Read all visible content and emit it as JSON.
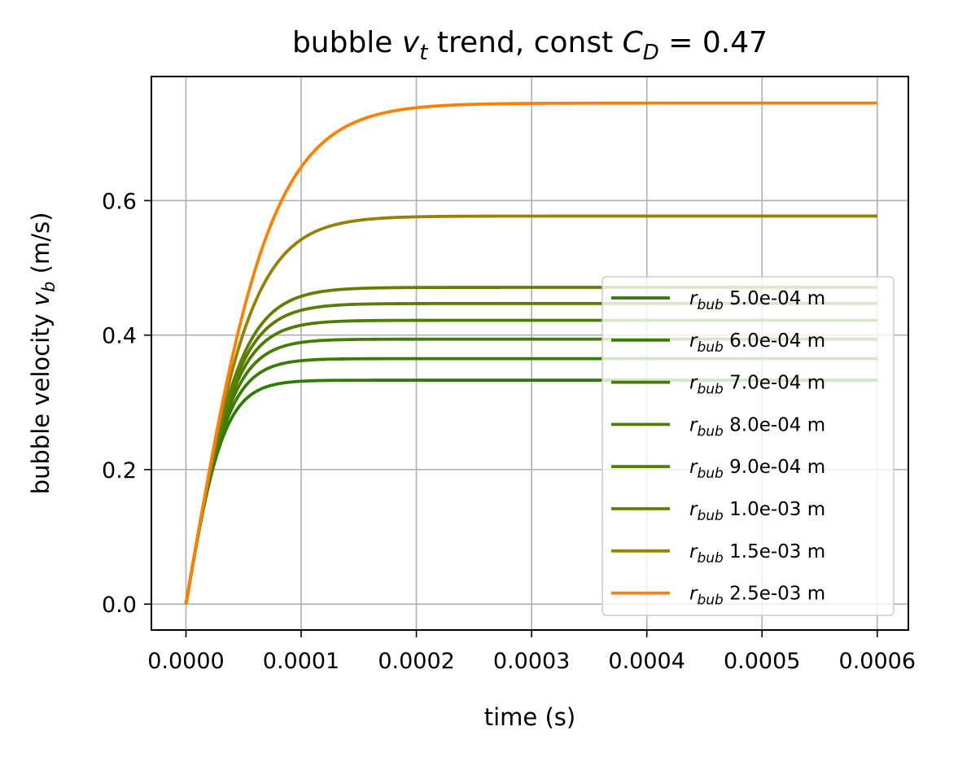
{
  "chart_data": {
    "type": "line",
    "title": {
      "prefix": "bubble ",
      "var": "v",
      "var_sub": "t",
      "middle": " trend, const ",
      "coef": "C",
      "coef_sub": "D",
      "suffix": " = 0.47"
    },
    "xlabel": "time (s)",
    "ylabel": {
      "prefix": "bubble velocity ",
      "var": "v",
      "var_sub": "b",
      "suffix": " (m/s)"
    },
    "xlim": [
      -3e-05,
      0.000627
    ],
    "ylim": [
      -0.0385,
      0.7845
    ],
    "x_ticks": [
      0,
      0.0001,
      0.0002,
      0.0003,
      0.0004,
      0.0005,
      0.0006
    ],
    "x_tick_labels": [
      "0.0000",
      "0.0001",
      "0.0002",
      "0.0003",
      "0.0004",
      "0.0005",
      "0.0006"
    ],
    "y_ticks": [
      0.0,
      0.2,
      0.4,
      0.6
    ],
    "y_tick_labels": [
      "0.0",
      "0.2",
      "0.4",
      "0.6"
    ],
    "grid": true,
    "legend_position": "lower-right",
    "legend_symbol": "r",
    "legend_symbol_sub": "bub",
    "legend_unit": "m",
    "series": [
      {
        "name": "5.0e-04",
        "v_terminal": 0.333,
        "tau": 3.33e-05,
        "color": "#2e7d00"
      },
      {
        "name": "6.0e-04",
        "v_terminal": 0.365,
        "tau": 3.65e-05,
        "color": "#387d00"
      },
      {
        "name": "7.0e-04",
        "v_terminal": 0.394,
        "tau": 3.94e-05,
        "color": "#427d00"
      },
      {
        "name": "8.0e-04",
        "v_terminal": 0.422,
        "tau": 4.22e-05,
        "color": "#4d7d00"
      },
      {
        "name": "9.0e-04",
        "v_terminal": 0.447,
        "tau": 4.47e-05,
        "color": "#577e00"
      },
      {
        "name": "1.0e-03",
        "v_terminal": 0.471,
        "tau": 4.71e-05,
        "color": "#637e00"
      },
      {
        "name": "1.5e-03",
        "v_terminal": 0.577,
        "tau": 5.77e-05,
        "color": "#948200"
      },
      {
        "name": "2.5e-03",
        "v_terminal": 0.745,
        "tau": 7.45e-05,
        "color": "#ff8000"
      }
    ]
  }
}
